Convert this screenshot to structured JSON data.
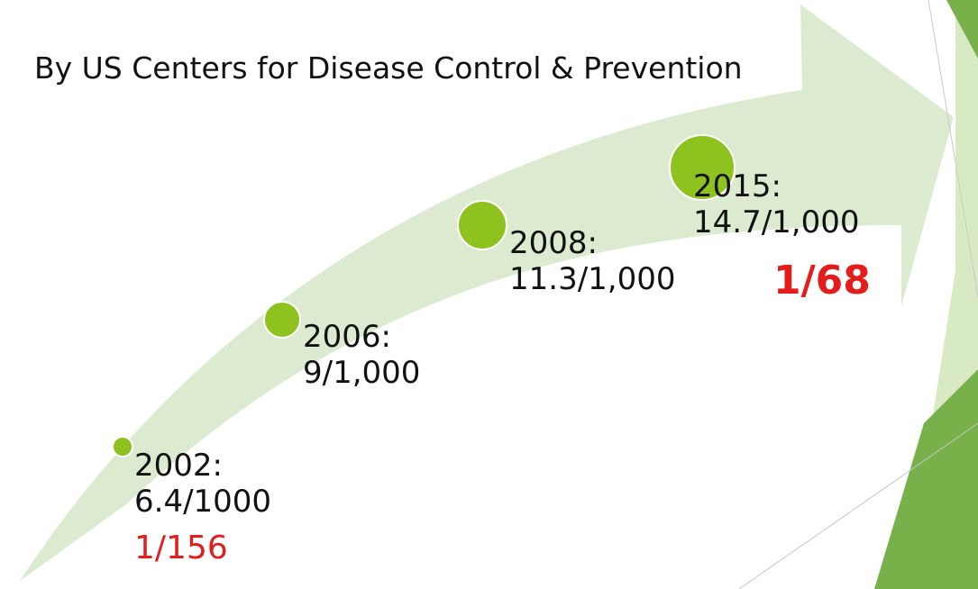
{
  "title": "By US Centers for Disease Control & Prevention",
  "milestones": [
    {
      "year": "2002:",
      "rate": "6.4/1000"
    },
    {
      "year": "2006:",
      "rate": "9/1,000"
    },
    {
      "year": "2008:",
      "rate": "11.3/1,000"
    },
    {
      "year": "2015:",
      "rate": "14.7/1,000"
    }
  ],
  "ratios": {
    "first": "1/156",
    "last": "1/68"
  },
  "colors": {
    "arrow": "#dcebd0",
    "dot": "#8dc21f",
    "dot_stroke": "#ffffff",
    "ratio_text": "#e31c1c",
    "accent_dark": "#78b04a",
    "accent_light": "#d7eac3"
  }
}
